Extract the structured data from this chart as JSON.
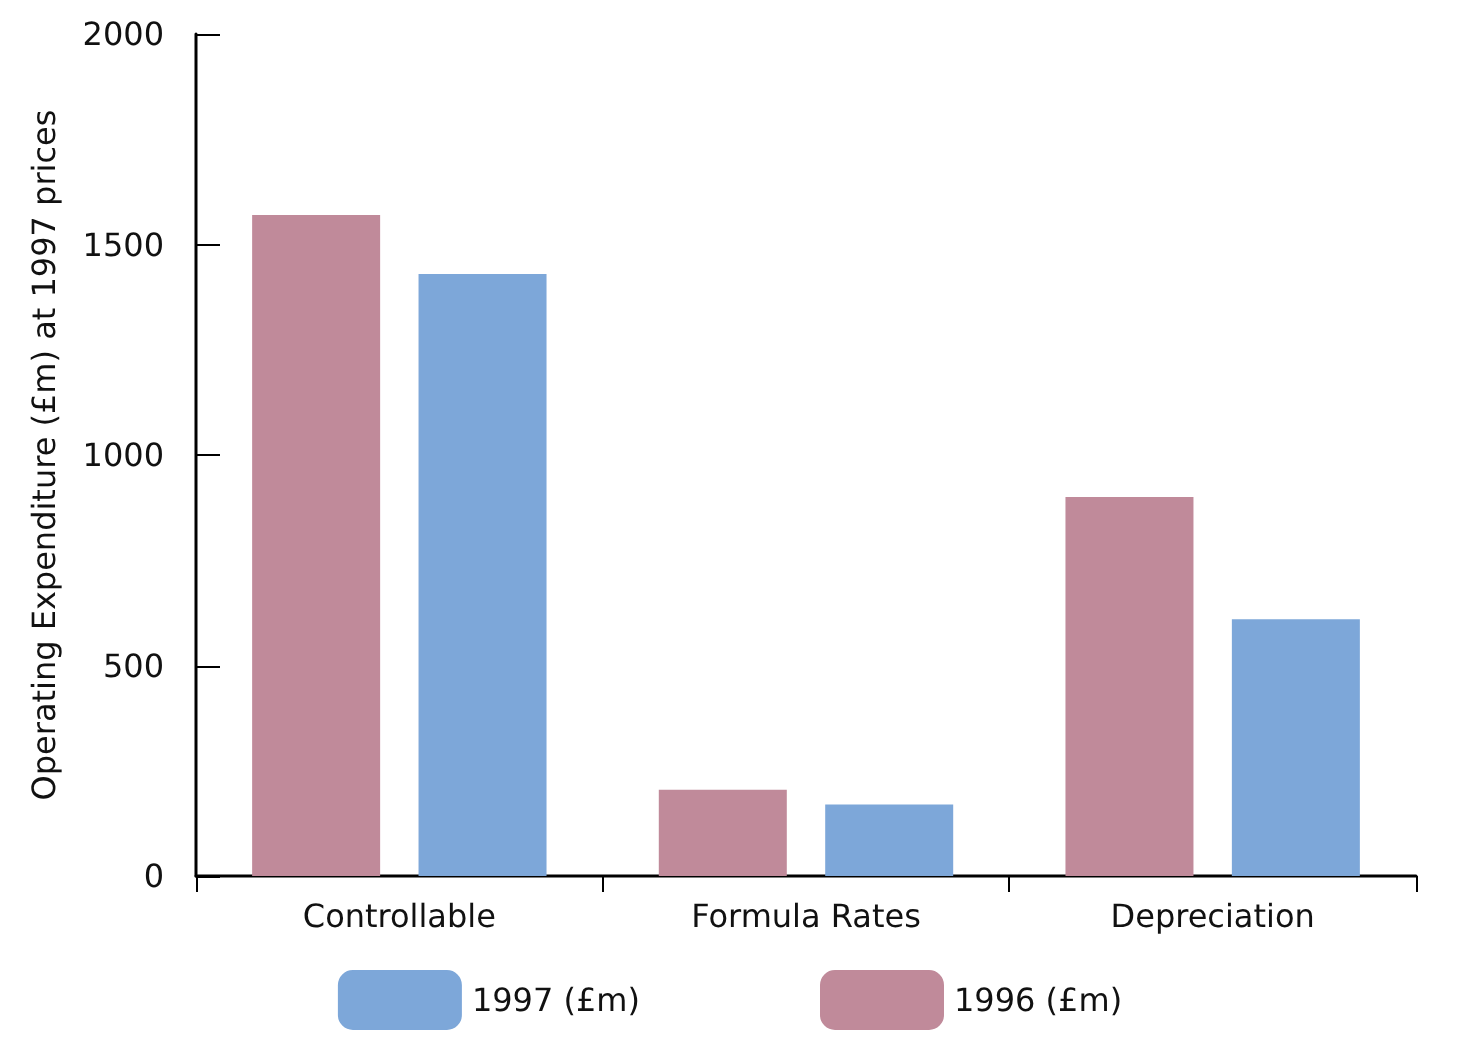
{
  "chart_data": {
    "type": "bar",
    "ylabel": "Operating Expenditure (£m) at 1997 prices",
    "categories": [
      "Controllable",
      "Formula Rates",
      "Depreciation"
    ],
    "series": [
      {
        "name": "1996 (£m)",
        "color": "#c08a9a",
        "values": [
          1570,
          205,
          900
        ]
      },
      {
        "name": "1997 (£m)",
        "color": "#7da7d9",
        "values": [
          1430,
          170,
          610
        ]
      }
    ],
    "ylim": [
      0,
      2000
    ],
    "yticks": [
      0,
      500,
      1000,
      1500,
      2000
    ],
    "grid": false,
    "legend": "bottom"
  }
}
